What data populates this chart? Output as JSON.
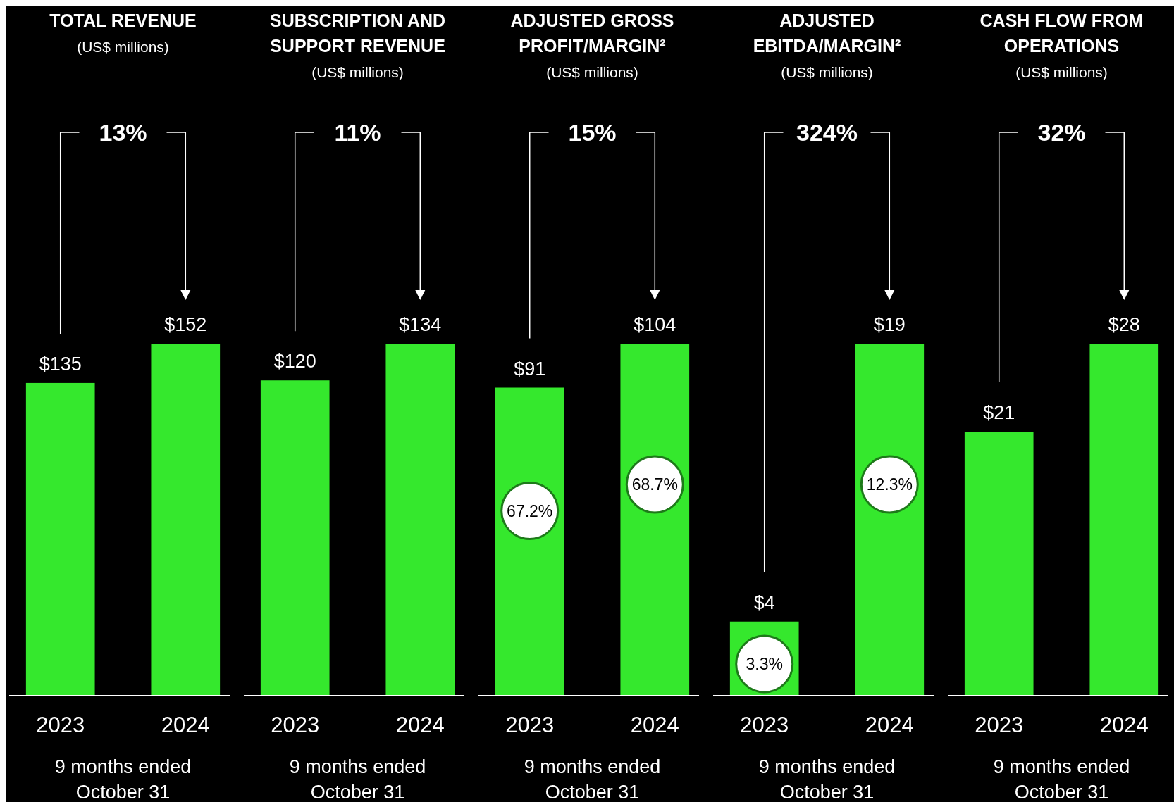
{
  "chart_data": [
    {
      "type": "bar",
      "title": "TOTAL REVENUE",
      "subtitle": "(US$ millions)",
      "xlabel": "9 months ended October 31",
      "categories": [
        "2023",
        "2024"
      ],
      "values": [
        135,
        152
      ],
      "value_labels": [
        "$135",
        "$152"
      ],
      "color": "#35e82d",
      "annotations": [
        "13%"
      ]
    },
    {
      "type": "bar",
      "title": "SUBSCRIPTION AND SUPPORT REVENUE",
      "subtitle": "(US$ millions)",
      "xlabel": "9 months ended October 31",
      "categories": [
        "2023",
        "2024"
      ],
      "values": [
        120,
        134
      ],
      "value_labels": [
        "$120",
        "$134"
      ],
      "color": "#35e82d",
      "annotations": [
        "11%"
      ]
    },
    {
      "type": "bar",
      "title": "ADJUSTED GROSS PROFIT/MARGIN²",
      "subtitle": "(US$ millions)",
      "xlabel": "9 months ended October 31",
      "categories": [
        "2023",
        "2024"
      ],
      "values": [
        91,
        104
      ],
      "value_labels": [
        "$91",
        "$104"
      ],
      "color": "#35e82d",
      "annotations": [
        "15%",
        "67.2%",
        "68.7%"
      ]
    },
    {
      "type": "bar",
      "title": "ADJUSTED EBITDA/MARGIN²",
      "subtitle": "(US$ millions)",
      "xlabel": "9 months ended October 31",
      "categories": [
        "2023",
        "2024"
      ],
      "values": [
        4,
        19
      ],
      "value_labels": [
        "$4",
        "$19"
      ],
      "color": "#35e82d",
      "annotations": [
        "324%",
        "3.3%",
        "12.3%"
      ]
    },
    {
      "type": "bar",
      "title": "CASH FLOW FROM OPERATIONS",
      "subtitle": "(US$ millions)",
      "xlabel": "9 months ended October 31",
      "categories": [
        "2023",
        "2024"
      ],
      "values": [
        21,
        28
      ],
      "value_labels": [
        "$21",
        "$28"
      ],
      "color": "#35e82d",
      "annotations": [
        "32%"
      ]
    }
  ]
}
